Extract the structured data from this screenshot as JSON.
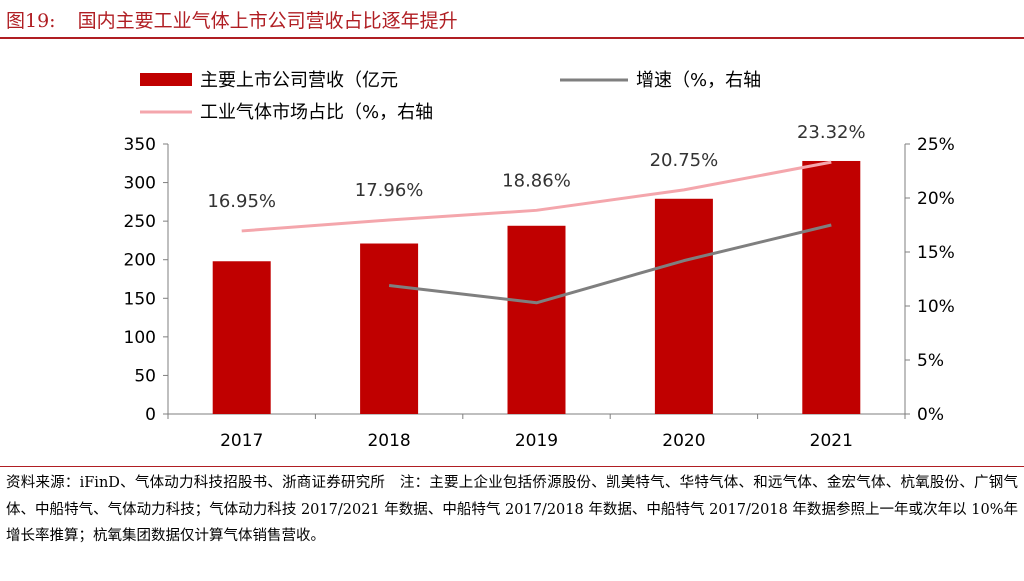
{
  "figure": {
    "number": "图19:",
    "title": "国内主要工业气体上市公司营收占比逐年提升"
  },
  "colors": {
    "title": "#b01e23",
    "bar": "#c00000",
    "growth_line": "#7f7f7f",
    "share_line": "#f4a6ac"
  },
  "chart_data": {
    "type": "bar",
    "categories": [
      "2017",
      "2018",
      "2019",
      "2020",
      "2021"
    ],
    "series": [
      {
        "name": "主要上市公司营收（亿元",
        "type": "bar",
        "axis": "left",
        "values": [
          198,
          221,
          244,
          279,
          328
        ]
      },
      {
        "name": "增速（%，右轴",
        "type": "line",
        "axis": "right",
        "values": [
          null,
          11.9,
          10.3,
          14.2,
          17.5
        ]
      },
      {
        "name": "工业气体市场占比（%，右轴",
        "type": "line",
        "axis": "right",
        "values": [
          16.95,
          17.96,
          18.86,
          20.75,
          23.32
        ],
        "labels": [
          "16.95%",
          "17.96%",
          "18.86%",
          "20.75%",
          "23.32%"
        ]
      }
    ],
    "ylim_left": [
      0,
      350
    ],
    "yticks_left": [
      "0",
      "50",
      "100",
      "150",
      "200",
      "250",
      "300",
      "350"
    ],
    "ylim_right": [
      0,
      25
    ],
    "yticks_right": [
      "0%",
      "5%",
      "10%",
      "15%",
      "20%",
      "25%"
    ],
    "legend_position": "top-left",
    "grid": false
  },
  "note": "资料来源：iFinD、气体动力科技招股书、浙商证券研究所　注：主要上企业包括侨源股份、凯美特气、华特气体、和远气体、金宏气体、杭氧股份、广钢气体、中船特气、气体动力科技；气体动力科技 2017/2021 年数据、中船特气 2017/2018 年数据、中船特气 2017/2018 年数据参照上一年或次年以 10%年增长率推算；杭氧集团数据仅计算气体销售营收。"
}
